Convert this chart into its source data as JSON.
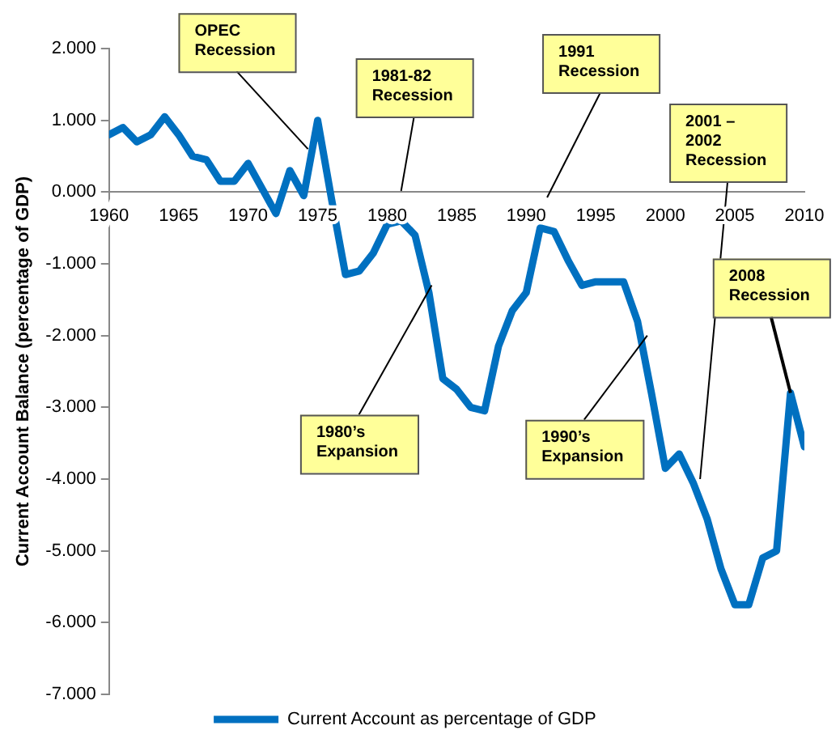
{
  "chart_data": {
    "type": "line",
    "ylabel": "Current Account Balance (percentage of GDP)",
    "x": [
      1960,
      1961,
      1962,
      1963,
      1964,
      1965,
      1966,
      1967,
      1968,
      1969,
      1970,
      1971,
      1972,
      1973,
      1974,
      1975,
      1976,
      1977,
      1978,
      1979,
      1980,
      1981,
      1982,
      1983,
      1984,
      1985,
      1986,
      1987,
      1988,
      1989,
      1990,
      1991,
      1992,
      1993,
      1994,
      1995,
      1996,
      1997,
      1998,
      1999,
      2000,
      2001,
      2002,
      2003,
      2004,
      2005,
      2006,
      2007,
      2008,
      2009,
      2010
    ],
    "series": [
      {
        "name": "Current Account as percentage of GDP",
        "color": "#0070c0",
        "values": [
          0.8,
          0.9,
          0.7,
          0.8,
          1.05,
          0.8,
          0.5,
          0.45,
          0.15,
          0.15,
          0.4,
          0.05,
          -0.3,
          0.3,
          -0.05,
          1.0,
          -0.1,
          -1.15,
          -1.1,
          -0.85,
          -0.45,
          -0.4,
          -0.6,
          -1.4,
          -2.6,
          -2.75,
          -3.0,
          -3.05,
          -2.15,
          -1.65,
          -1.4,
          -0.5,
          -0.55,
          -0.95,
          -1.3,
          -1.25,
          -1.25,
          -1.25,
          -1.8,
          -2.8,
          -3.85,
          -3.65,
          -4.05,
          -4.55,
          -5.25,
          -5.75,
          -5.75,
          -5.1,
          -5.0,
          -2.8,
          -3.55
        ]
      }
    ],
    "xlim": [
      1960,
      2010
    ],
    "xticks": [
      1960,
      1965,
      1970,
      1975,
      1980,
      1985,
      1990,
      1995,
      2000,
      2005,
      2010
    ],
    "ylim": [
      -7,
      2
    ],
    "yticks": [
      {
        "value": -7,
        "label": "-7.000"
      },
      {
        "value": -6,
        "label": "-6.000"
      },
      {
        "value": -5,
        "label": "-5.000"
      },
      {
        "value": -4,
        "label": "-4.000"
      },
      {
        "value": -3,
        "label": "-3.000"
      },
      {
        "value": -2,
        "label": "-2.000"
      },
      {
        "value": -1,
        "label": "-1.000"
      },
      {
        "value": 0,
        "label": "0.000"
      },
      {
        "value": 1,
        "label": "1.000"
      },
      {
        "value": 2,
        "label": "2.000"
      }
    ],
    "annotations": [
      {
        "text": "OPEC Recession",
        "x": 1974.3,
        "y": 0.6
      },
      "1981-82 Recession",
      "1991 Recession",
      {
        "text": "2001 – 2002 Recession",
        "x": 2002.5,
        "y": -4.0
      },
      {
        "text": "2008 Recession",
        "x": 2009,
        "y": -2.8
      },
      {
        "text": "1980’s Expansion",
        "x": 1983.2,
        "y": -1.3
      },
      {
        "text": "1990’s Expansion",
        "x": 1998.7,
        "y": -2.0
      }
    ],
    "grid": false,
    "legend": "bottom",
    "marker": "none",
    "line_style": "solid"
  }
}
